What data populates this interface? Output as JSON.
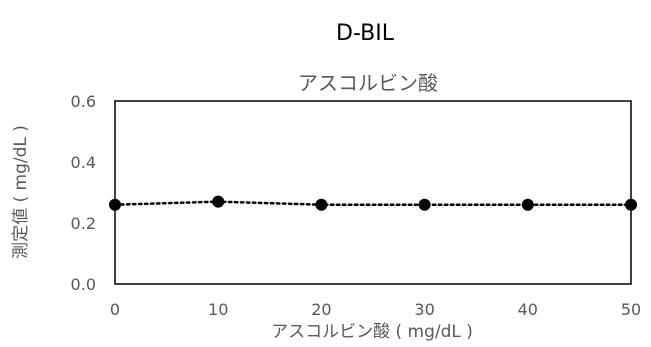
{
  "chart_data": {
    "type": "scatter",
    "title": "D-BIL",
    "subtitle": "アスコルビン酸",
    "xlabel": "アスコルビン酸 ( mg/dL )",
    "ylabel": "測定値 ( mg/dL )",
    "x": [
      0,
      10,
      20,
      30,
      40,
      50
    ],
    "series": [
      {
        "values": [
          0.26,
          0.27,
          0.26,
          0.26,
          0.26,
          0.26
        ]
      }
    ],
    "xlim": [
      0,
      50
    ],
    "ylim": [
      0,
      0.6
    ],
    "xticks": [
      "0",
      "10",
      "20",
      "30",
      "40",
      "50"
    ],
    "yticks": [
      "0.0",
      "0.2",
      "0.4",
      "0.6"
    ],
    "grid": false,
    "colors": {
      "marker": "#000000",
      "line": "#000000",
      "text": "#595959"
    }
  }
}
